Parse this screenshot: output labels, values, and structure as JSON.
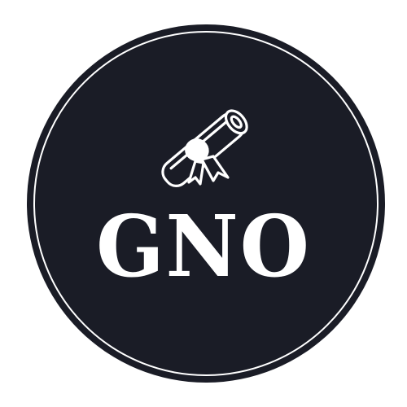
{
  "logo": {
    "text": "GNO",
    "icon": "diploma-scroll-icon",
    "colors": {
      "background": "#1a1c26",
      "ring": "#ffffff",
      "foreground": "#ffffff",
      "page": "#ffffff"
    }
  }
}
